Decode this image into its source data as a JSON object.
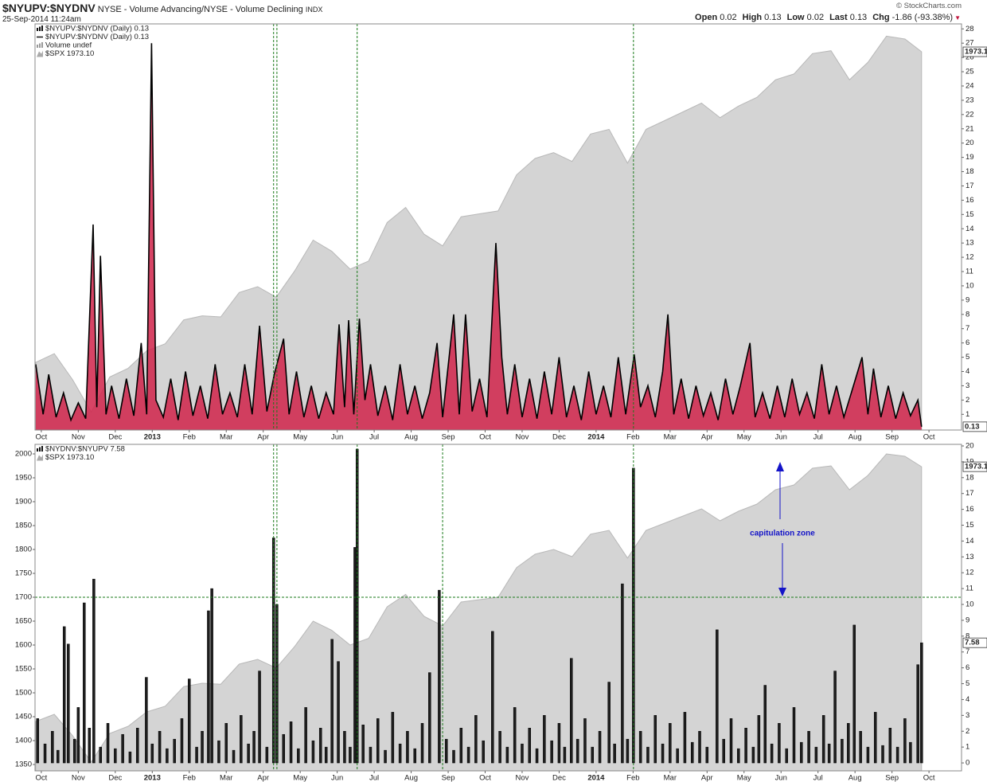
{
  "header": {
    "symbol": "$NYUPV:$NYDNV",
    "description": "NYSE - Volume Advancing/NYSE - Volume Declining",
    "exchange": "INDX",
    "timestamp": "25-Sep-2014 11:24am",
    "copyright": "© StockCharts.com",
    "quote": [
      {
        "label": "Open",
        "value": 0.02
      },
      {
        "label": "High",
        "value": 0.13
      },
      {
        "label": "Low",
        "value": 0.02
      },
      {
        "label": "Last",
        "value": 0.13
      },
      {
        "label": "Chg",
        "value": -1.86,
        "pct": "(-93.38%)"
      }
    ]
  },
  "chart_data": [
    {
      "type": "line",
      "xlim": [
        -0.17,
        24.88
      ],
      "xticks": [
        {
          "value": 0,
          "label": "Oct"
        },
        {
          "value": 1,
          "label": "Nov"
        },
        {
          "value": 2,
          "label": "Dec"
        },
        {
          "value": 3,
          "label": "2013"
        },
        {
          "value": 4,
          "label": "Feb"
        },
        {
          "value": 5,
          "label": "Mar"
        },
        {
          "value": 6,
          "label": "Apr"
        },
        {
          "value": 7,
          "label": "May"
        },
        {
          "value": 8,
          "label": "Jun"
        },
        {
          "value": 9,
          "label": "Jul"
        },
        {
          "value": 10,
          "label": "Aug"
        },
        {
          "value": 11,
          "label": "Sep"
        },
        {
          "value": 12,
          "label": "Oct"
        },
        {
          "value": 13,
          "label": "Nov"
        },
        {
          "value": 14,
          "label": "Dec"
        },
        {
          "value": 15,
          "label": "2014"
        },
        {
          "value": 16,
          "label": "Feb"
        },
        {
          "value": 17,
          "label": "Mar"
        },
        {
          "value": 18,
          "label": "Apr"
        },
        {
          "value": 19,
          "label": "May"
        },
        {
          "value": 20,
          "label": "Jun"
        },
        {
          "value": 21,
          "label": "Jul"
        },
        {
          "value": 22,
          "label": "Aug"
        },
        {
          "value": 23,
          "label": "Sep"
        },
        {
          "value": 24,
          "label": "Oct"
        }
      ],
      "ylim": [
        1324,
        2021
      ],
      "y2lim": [
        -0.1,
        28.35
      ],
      "y2ticks": [
        1,
        2,
        3,
        4,
        5,
        6,
        7,
        8,
        9,
        10,
        11,
        12,
        13,
        14,
        15,
        16,
        17,
        18,
        19,
        20,
        21,
        22,
        23,
        24,
        25,
        26,
        27,
        28
      ],
      "legend_extra": [
        "$NYUPV:$NYDNV (Daily) 0.13",
        "Volume undef"
      ],
      "vlines": [
        6.28,
        6.37,
        8.54,
        16.01
      ],
      "series": [
        {
          "name": "$SPX 1973.10",
          "type": "area",
          "color": "#d4d4d4",
          "x": [
            -0.15,
            0.35,
            0.85,
            1.35,
            1.85,
            2.35,
            2.85,
            3.35,
            3.85,
            4.35,
            4.85,
            5.35,
            5.85,
            6.35,
            6.85,
            7.35,
            7.85,
            8.35,
            8.85,
            9.35,
            9.85,
            10.35,
            10.85,
            11.35,
            11.85,
            12.35,
            12.85,
            13.35,
            13.85,
            14.35,
            14.85,
            15.35,
            15.85,
            16.35,
            16.85,
            17.35,
            17.85,
            18.35,
            18.85,
            19.35,
            19.85,
            20.35,
            20.85,
            21.35,
            21.85,
            22.35,
            22.85,
            23.35,
            23.8
          ],
          "values": [
            1440,
            1455,
            1410,
            1355,
            1415,
            1430,
            1460,
            1472,
            1513,
            1520,
            1518,
            1560,
            1570,
            1552,
            1597,
            1650,
            1631,
            1600,
            1614,
            1680,
            1706,
            1660,
            1640,
            1690,
            1695,
            1700,
            1762,
            1790,
            1800,
            1785,
            1832,
            1840,
            1782,
            1840,
            1855,
            1870,
            1885,
            1860,
            1880,
            1895,
            1925,
            1935,
            1970,
            1975,
            1925,
            1955,
            2000,
            1995,
            1973.1
          ],
          "tag": true
        },
        {
          "name": "$NYUPV:$NYDNV (Daily) 0.13",
          "type": "line",
          "axis": "y2",
          "color": "#000000",
          "fill": "#d0234a",
          "x": [
            -0.15,
            0.05,
            0.2,
            0.4,
            0.6,
            0.8,
            1.0,
            1.2,
            1.4,
            1.5,
            1.6,
            1.75,
            1.9,
            2.1,
            2.3,
            2.5,
            2.7,
            2.85,
            2.98,
            3.1,
            3.3,
            3.5,
            3.7,
            3.9,
            4.1,
            4.3,
            4.5,
            4.7,
            4.9,
            5.1,
            5.3,
            5.5,
            5.7,
            5.9,
            6.1,
            6.3,
            6.55,
            6.7,
            6.9,
            7.1,
            7.3,
            7.5,
            7.7,
            7.9,
            8.05,
            8.2,
            8.31,
            8.45,
            8.6,
            8.75,
            8.9,
            9.1,
            9.3,
            9.5,
            9.7,
            9.9,
            10.1,
            10.3,
            10.5,
            10.7,
            10.85,
            11.15,
            11.3,
            11.47,
            11.65,
            11.85,
            12.05,
            12.29,
            12.45,
            12.6,
            12.8,
            13.0,
            13.2,
            13.4,
            13.6,
            13.8,
            14.0,
            14.2,
            14.4,
            14.6,
            14.8,
            15.0,
            15.2,
            15.4,
            15.6,
            15.8,
            16.03,
            16.2,
            16.4,
            16.6,
            16.8,
            16.94,
            17.1,
            17.3,
            17.5,
            17.7,
            17.9,
            18.1,
            18.3,
            18.5,
            18.7,
            18.9,
            19.16,
            19.3,
            19.5,
            19.7,
            19.9,
            20.1,
            20.3,
            20.5,
            20.7,
            20.9,
            21.1,
            21.3,
            21.5,
            21.7,
            21.9,
            22.19,
            22.35,
            22.5,
            22.7,
            22.9,
            23.1,
            23.3,
            23.5,
            23.7,
            23.8
          ],
          "values": [
            4.5,
            1.0,
            3.8,
            0.8,
            2.5,
            0.6,
            1.8,
            0.7,
            14.3,
            1.5,
            12.1,
            1.0,
            3.0,
            0.7,
            3.5,
            0.9,
            6.0,
            1.0,
            27.0,
            2.0,
            0.8,
            3.5,
            0.6,
            4.0,
            0.9,
            3.0,
            0.7,
            4.5,
            1.0,
            2.5,
            0.8,
            4.5,
            1.0,
            7.2,
            1.2,
            3.8,
            6.3,
            1.0,
            4.0,
            0.8,
            3.0,
            0.7,
            2.5,
            1.0,
            7.3,
            1.5,
            7.6,
            1.0,
            7.7,
            2.0,
            4.5,
            0.9,
            3.0,
            0.6,
            4.5,
            1.0,
            3.0,
            0.7,
            2.5,
            6.0,
            0.8,
            8.0,
            1.0,
            8.0,
            1.2,
            3.5,
            0.8,
            13.0,
            5.0,
            1.0,
            4.5,
            0.8,
            3.5,
            0.7,
            4.0,
            1.0,
            5.0,
            0.8,
            3.0,
            0.6,
            4.0,
            1.0,
            3.0,
            0.8,
            5.0,
            1.0,
            5.2,
            1.5,
            3.0,
            0.8,
            4.0,
            8.0,
            1.0,
            3.5,
            0.7,
            3.0,
            0.9,
            2.5,
            0.6,
            3.5,
            1.0,
            3.0,
            6.0,
            0.8,
            2.5,
            0.7,
            3.0,
            0.8,
            3.5,
            1.0,
            2.5,
            0.7,
            4.5,
            1.0,
            3.0,
            0.8,
            2.5,
            5.0,
            1.0,
            4.2,
            0.8,
            3.0,
            0.7,
            2.5,
            0.9,
            2.0,
            0.13
          ],
          "tag": true
        }
      ]
    },
    {
      "type": "bar",
      "xlim": [
        -0.17,
        24.88
      ],
      "xticks": [
        {
          "value": 0,
          "label": "Oct"
        },
        {
          "value": 1,
          "label": "Nov"
        },
        {
          "value": 2,
          "label": "Dec"
        },
        {
          "value": 3,
          "label": "2013"
        },
        {
          "value": 4,
          "label": "Feb"
        },
        {
          "value": 5,
          "label": "Mar"
        },
        {
          "value": 6,
          "label": "Apr"
        },
        {
          "value": 7,
          "label": "May"
        },
        {
          "value": 8,
          "label": "Jun"
        },
        {
          "value": 9,
          "label": "Jul"
        },
        {
          "value": 10,
          "label": "Aug"
        },
        {
          "value": 11,
          "label": "Sep"
        },
        {
          "value": 12,
          "label": "Oct"
        },
        {
          "value": 13,
          "label": "Nov"
        },
        {
          "value": 14,
          "label": "Dec"
        },
        {
          "value": 15,
          "label": "2014"
        },
        {
          "value": 16,
          "label": "Feb"
        },
        {
          "value": 17,
          "label": "Mar"
        },
        {
          "value": 18,
          "label": "Apr"
        },
        {
          "value": 19,
          "label": "May"
        },
        {
          "value": 20,
          "label": "Jun"
        },
        {
          "value": 21,
          "label": "Jul"
        },
        {
          "value": 22,
          "label": "Aug"
        },
        {
          "value": 23,
          "label": "Sep"
        },
        {
          "value": 24,
          "label": "Oct"
        }
      ],
      "ylim": [
        1336.7,
        2020
      ],
      "yticks": [
        1350,
        1400,
        1450,
        1500,
        1550,
        1600,
        1650,
        1700,
        1750,
        1800,
        1850,
        1900,
        1950,
        2000
      ],
      "y2lim": [
        -0.5,
        20.1
      ],
      "y2ticks": [
        0,
        1,
        2,
        3,
        4,
        5,
        6,
        7,
        8,
        9,
        10,
        11,
        12,
        13,
        14,
        15,
        16,
        17,
        18,
        19,
        20
      ],
      "vlines": [
        6.28,
        6.37,
        8.54,
        10.85,
        16.01
      ],
      "hline": 1700,
      "annotation": "capitulation zone",
      "series": [
        {
          "name": "$SPX 1973.10",
          "type": "area",
          "color": "#d4d4d4",
          "x": [
            -0.15,
            0.35,
            0.85,
            1.35,
            1.85,
            2.35,
            2.85,
            3.35,
            3.85,
            4.35,
            4.85,
            5.35,
            5.85,
            6.35,
            6.85,
            7.35,
            7.85,
            8.35,
            8.85,
            9.35,
            9.85,
            10.35,
            10.85,
            11.35,
            11.85,
            12.35,
            12.85,
            13.35,
            13.85,
            14.35,
            14.85,
            15.35,
            15.85,
            16.35,
            16.85,
            17.35,
            17.85,
            18.35,
            18.85,
            19.35,
            19.85,
            20.35,
            20.85,
            21.35,
            21.85,
            22.35,
            22.85,
            23.35,
            23.8
          ],
          "values": [
            1440,
            1455,
            1410,
            1355,
            1415,
            1430,
            1460,
            1472,
            1513,
            1520,
            1518,
            1560,
            1570,
            1552,
            1597,
            1650,
            1631,
            1600,
            1614,
            1680,
            1706,
            1660,
            1640,
            1690,
            1695,
            1700,
            1762,
            1790,
            1800,
            1785,
            1832,
            1840,
            1782,
            1840,
            1855,
            1870,
            1885,
            1860,
            1880,
            1895,
            1925,
            1935,
            1970,
            1975,
            1925,
            1955,
            2000,
            1995,
            1973.1
          ],
          "tag": true
        },
        {
          "name": "$NYDNV:$NYUPV 7.58",
          "type": "bar",
          "axis": "y2",
          "color": "#1e1e1e",
          "x": [
            -0.1,
            0.1,
            0.3,
            0.45,
            0.62,
            0.73,
            0.9,
            1.0,
            1.16,
            1.3,
            1.42,
            1.6,
            1.8,
            2.0,
            2.2,
            2.4,
            2.6,
            2.84,
            3.0,
            3.2,
            3.4,
            3.6,
            3.8,
            4.0,
            4.2,
            4.35,
            4.52,
            4.61,
            4.8,
            5.0,
            5.2,
            5.4,
            5.6,
            5.75,
            5.9,
            6.1,
            6.28,
            6.37,
            6.55,
            6.75,
            6.95,
            7.15,
            7.35,
            7.55,
            7.7,
            7.86,
            8.03,
            8.2,
            8.35,
            8.48,
            8.54,
            8.7,
            8.9,
            9.1,
            9.3,
            9.5,
            9.7,
            9.9,
            10.1,
            10.3,
            10.5,
            10.76,
            10.95,
            11.15,
            11.35,
            11.55,
            11.75,
            11.95,
            12.2,
            12.4,
            12.6,
            12.8,
            13.0,
            13.2,
            13.4,
            13.6,
            13.8,
            14.0,
            14.15,
            14.33,
            14.5,
            14.7,
            14.9,
            15.1,
            15.35,
            15.5,
            15.71,
            15.85,
            16.01,
            16.2,
            16.4,
            16.6,
            16.8,
            17.0,
            17.2,
            17.4,
            17.6,
            17.8,
            18.0,
            18.27,
            18.45,
            18.65,
            18.85,
            19.05,
            19.25,
            19.4,
            19.57,
            19.75,
            19.95,
            20.15,
            20.35,
            20.55,
            20.75,
            20.95,
            21.15,
            21.3,
            21.46,
            21.65,
            21.82,
            21.98,
            22.15,
            22.35,
            22.55,
            22.75,
            22.95,
            23.15,
            23.35,
            23.5,
            23.7,
            23.8
          ],
          "values": [
            2.8,
            1.2,
            2.0,
            0.8,
            8.6,
            7.5,
            1.5,
            3.5,
            10.1,
            2.2,
            11.6,
            1.0,
            2.5,
            0.9,
            1.8,
            0.7,
            2.2,
            5.4,
            1.2,
            2.0,
            0.9,
            1.5,
            2.8,
            5.3,
            1.0,
            2.0,
            9.6,
            11.0,
            1.4,
            2.5,
            0.8,
            3.0,
            1.2,
            2.0,
            5.8,
            1.0,
            14.2,
            10.0,
            1.8,
            2.6,
            0.9,
            3.5,
            1.4,
            2.2,
            1.0,
            7.8,
            6.4,
            2.0,
            1.0,
            13.6,
            19.8,
            2.4,
            1.0,
            2.8,
            0.8,
            3.2,
            1.2,
            2.0,
            0.9,
            2.5,
            5.7,
            10.9,
            1.5,
            0.8,
            2.2,
            1.0,
            3.0,
            1.4,
            8.3,
            2.0,
            1.0,
            3.5,
            1.2,
            2.2,
            0.9,
            3.0,
            1.4,
            2.5,
            1.0,
            6.6,
            1.5,
            2.8,
            1.0,
            2.0,
            5.1,
            1.2,
            11.3,
            1.5,
            18.6,
            2.0,
            1.0,
            3.0,
            1.2,
            2.5,
            0.9,
            3.2,
            1.3,
            2.0,
            1.0,
            8.4,
            1.5,
            2.8,
            0.9,
            2.2,
            1.0,
            3.0,
            4.9,
            1.2,
            2.5,
            0.9,
            3.5,
            1.3,
            2.0,
            1.0,
            3.0,
            1.2,
            5.8,
            1.5,
            2.5,
            8.7,
            2.0,
            1.0,
            3.2,
            1.1,
            2.2,
            1.0,
            2.8,
            1.3,
            6.2,
            7.58
          ],
          "tag": true
        }
      ]
    }
  ]
}
